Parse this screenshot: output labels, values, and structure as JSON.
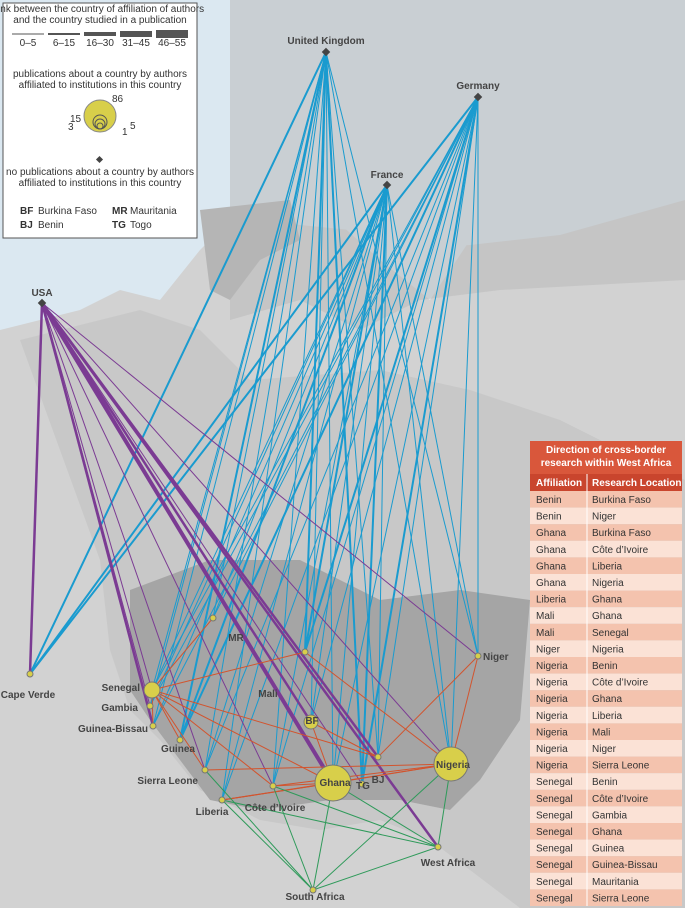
{
  "legend": {
    "link_title": [
      "link between the country of affiliation of authors",
      "and the country studied in a publication"
    ],
    "link_ranges": [
      "0–5",
      "6–15",
      "16–30",
      "31–45",
      "46–55"
    ],
    "circle_title": [
      "publications about a country by authors",
      "affiliated to institutions in this country"
    ],
    "circle_labels": [
      "86",
      "15",
      "3",
      "5",
      "1"
    ],
    "none_title": [
      "no publications about a country by authors",
      "affiliated to institutions in this country"
    ],
    "abbreviations": [
      [
        "BF",
        "Burkina Faso"
      ],
      [
        "MR",
        "Mauritania"
      ],
      [
        "BJ",
        "Benin"
      ],
      [
        "TG",
        "Togo"
      ]
    ]
  },
  "places": [
    "United Kingdom",
    "Germany",
    "France",
    "USA",
    "Cape Verde",
    "Senegal",
    "Gambia",
    "Guinea-Bissau",
    "Guinea",
    "Sierra Leone",
    "Liberia",
    "Côte d’Ivoire",
    "Mali",
    "MR",
    "BF",
    "Ghana",
    "TG",
    "BJ",
    "Nigeria",
    "Niger",
    "West Africa",
    "South Africa"
  ],
  "table": {
    "title": [
      "Direction of cross-border",
      "research within West Africa"
    ],
    "headers": [
      "Affiliation",
      "Research Location"
    ],
    "rows": [
      [
        "Benin",
        "Burkina Faso"
      ],
      [
        "Benin",
        "Niger"
      ],
      [
        "Ghana",
        "Burkina Faso"
      ],
      [
        "Ghana",
        "Côte d’Ivoire"
      ],
      [
        "Ghana",
        "Liberia"
      ],
      [
        "Ghana",
        "Nigeria"
      ],
      [
        "Liberia",
        "Ghana"
      ],
      [
        "Mali",
        "Ghana"
      ],
      [
        "Mali",
        "Senegal"
      ],
      [
        "Niger",
        "Nigeria"
      ],
      [
        "Nigeria",
        "Benin"
      ],
      [
        "Nigeria",
        "Côte d’Ivoire"
      ],
      [
        "Nigeria",
        "Ghana"
      ],
      [
        "Nigeria",
        "Liberia"
      ],
      [
        "Nigeria",
        "Mali"
      ],
      [
        "Nigeria",
        "Niger"
      ],
      [
        "Nigeria",
        "Sierra Leone"
      ],
      [
        "Senegal",
        "Benin"
      ],
      [
        "Senegal",
        "Côte d’Ivoire"
      ],
      [
        "Senegal",
        "Gambia"
      ],
      [
        "Senegal",
        "Ghana"
      ],
      [
        "Senegal",
        "Guinea"
      ],
      [
        "Senegal",
        "Guinea-Bissau"
      ],
      [
        "Senegal",
        "Mauritania"
      ],
      [
        "Senegal",
        "Sierra Leone"
      ]
    ]
  }
}
